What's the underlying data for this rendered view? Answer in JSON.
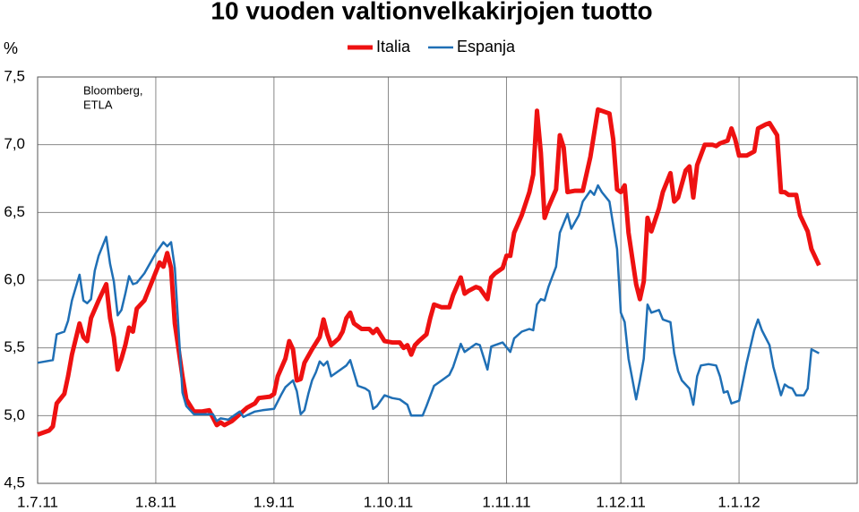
{
  "chart_data": {
    "type": "line",
    "title": "10 vuoden valtionvelkakirjojen tuotto",
    "y_label": "%",
    "source": [
      "Bloomberg,",
      "ETLA"
    ],
    "xlim": [
      0,
      215
    ],
    "xticks": [
      {
        "value": 0,
        "label": "1.7.11"
      },
      {
        "value": 31,
        "label": "1.8.11"
      },
      {
        "value": 62,
        "label": "1.9.11"
      },
      {
        "value": 92,
        "label": "1.10.11"
      },
      {
        "value": 123,
        "label": "1.11.11"
      },
      {
        "value": 153,
        "label": "1.12.11"
      },
      {
        "value": 184,
        "label": "1.1.12"
      }
    ],
    "ylim": [
      4.5,
      7.5
    ],
    "yticks": [
      {
        "value": 4.5,
        "label": "4,5"
      },
      {
        "value": 5,
        "label": "5,0"
      },
      {
        "value": 5.5,
        "label": "5,5"
      },
      {
        "value": 6,
        "label": "6,0"
      },
      {
        "value": 6.5,
        "label": "6,5"
      },
      {
        "value": 7,
        "label": "7,0"
      },
      {
        "value": 7.5,
        "label": "7,5"
      }
    ],
    "grid": true,
    "legend": "top",
    "series": [
      {
        "name": "Italia",
        "color": "#ee1111",
        "width": 5,
        "x": [
          0,
          3,
          4,
          5,
          7,
          8,
          9,
          11,
          12,
          13,
          14,
          16,
          18,
          19,
          20,
          21,
          22,
          23,
          24,
          25,
          26,
          28,
          30,
          32,
          33,
          34,
          35,
          36,
          38,
          39,
          41,
          43,
          45,
          47,
          48,
          49,
          51,
          53,
          55,
          57,
          58,
          61,
          62,
          63,
          65,
          66,
          67,
          68,
          69,
          70,
          72,
          74,
          75,
          76,
          77,
          79,
          80,
          81,
          82,
          83,
          85,
          87,
          88,
          89,
          91,
          93,
          95,
          96,
          97,
          98,
          99,
          100,
          102,
          103,
          104,
          106,
          108,
          109,
          111,
          112,
          113,
          115,
          116,
          118,
          119,
          120,
          122,
          123,
          124,
          125,
          127,
          129,
          130,
          131,
          132,
          133,
          134,
          136,
          137,
          138,
          139,
          141,
          143,
          145,
          147,
          149,
          150,
          151,
          152,
          153,
          154,
          155,
          157,
          158,
          159,
          160,
          161,
          163,
          164,
          166,
          167,
          168,
          170,
          171,
          172,
          173,
          175,
          177,
          178,
          179,
          181,
          182,
          183,
          184,
          186,
          188,
          189,
          191,
          192,
          194,
          195,
          196,
          197,
          199,
          200,
          202,
          203,
          205
        ],
        "values": [
          4.86,
          4.89,
          4.92,
          5.09,
          5.16,
          5.29,
          5.45,
          5.68,
          5.58,
          5.55,
          5.72,
          5.85,
          5.97,
          5.72,
          5.58,
          5.34,
          5.42,
          5.52,
          5.65,
          5.62,
          5.79,
          5.85,
          5.99,
          6.13,
          6.1,
          6.2,
          6.09,
          5.68,
          5.29,
          5.12,
          5.03,
          5.03,
          5.04,
          4.93,
          4.95,
          4.93,
          4.96,
          5.01,
          5.06,
          5.09,
          5.13,
          5.14,
          5.16,
          5.29,
          5.42,
          5.55,
          5.49,
          5.26,
          5.27,
          5.39,
          5.49,
          5.58,
          5.71,
          5.6,
          5.52,
          5.57,
          5.62,
          5.72,
          5.76,
          5.68,
          5.64,
          5.64,
          5.61,
          5.64,
          5.55,
          5.54,
          5.54,
          5.5,
          5.52,
          5.45,
          5.52,
          5.55,
          5.6,
          5.72,
          5.82,
          5.8,
          5.8,
          5.89,
          6.02,
          5.9,
          5.92,
          5.95,
          5.94,
          5.86,
          6.02,
          6.05,
          6.09,
          6.18,
          6.18,
          6.35,
          6.48,
          6.65,
          6.78,
          7.25,
          6.94,
          6.46,
          6.54,
          6.67,
          7.07,
          6.98,
          6.65,
          6.66,
          6.66,
          6.91,
          7.26,
          7.24,
          7.23,
          7.04,
          6.67,
          6.65,
          6.7,
          6.35,
          5.97,
          5.86,
          5.99,
          6.46,
          6.36,
          6.53,
          6.65,
          6.79,
          6.58,
          6.61,
          6.81,
          6.84,
          6.61,
          6.85,
          7.0,
          7.0,
          6.99,
          7.01,
          7.03,
          7.12,
          7.04,
          6.92,
          6.92,
          6.95,
          7.12,
          7.15,
          7.16,
          7.07,
          6.65,
          6.65,
          6.63,
          6.63,
          6.48,
          6.36,
          6.23,
          6.11
        ]
      },
      {
        "name": "Espanja",
        "color": "#1f6fb5",
        "width": 2.5,
        "x": [
          0,
          4,
          5,
          7,
          8,
          9,
          11,
          12,
          13,
          14,
          15,
          16,
          18,
          19,
          20,
          21,
          22,
          23,
          24,
          25,
          26,
          28,
          30,
          31,
          33,
          34,
          35,
          36,
          37,
          38,
          39,
          41,
          44,
          46,
          47,
          48,
          50,
          51,
          53,
          54,
          57,
          59,
          62,
          64,
          65,
          67,
          68,
          69,
          70,
          71,
          72,
          73,
          74,
          75,
          76,
          77,
          79,
          81,
          82,
          84,
          86,
          87,
          88,
          89,
          91,
          93,
          95,
          97,
          98,
          100,
          101,
          102,
          104,
          106,
          108,
          109,
          111,
          112,
          113,
          115,
          116,
          118,
          119,
          120,
          122,
          124,
          125,
          127,
          129,
          130,
          131,
          132,
          133,
          134,
          136,
          137,
          139,
          140,
          142,
          143,
          145,
          146,
          147,
          148,
          150,
          152,
          153,
          154,
          155,
          157,
          158,
          159,
          160,
          161,
          163,
          164,
          166,
          167,
          168,
          169,
          171,
          172,
          173,
          174,
          176,
          178,
          179,
          180,
          181,
          182,
          183,
          184,
          186,
          188,
          189,
          190,
          192,
          193,
          195,
          196,
          197,
          198,
          199,
          201,
          202,
          203,
          205
        ],
        "values": [
          5.39,
          5.41,
          5.6,
          5.62,
          5.7,
          5.85,
          6.04,
          5.85,
          5.83,
          5.86,
          6.07,
          6.18,
          6.32,
          6.12,
          5.99,
          5.74,
          5.78,
          5.9,
          6.03,
          5.97,
          5.98,
          6.05,
          6.15,
          6.2,
          6.28,
          6.25,
          6.28,
          6.09,
          5.62,
          5.17,
          5.07,
          5.01,
          5.01,
          5.01,
          4.96,
          4.98,
          4.97,
          4.99,
          5.03,
          4.99,
          5.03,
          5.04,
          5.05,
          5.16,
          5.21,
          5.26,
          5.18,
          5.01,
          5.04,
          5.16,
          5.26,
          5.32,
          5.4,
          5.37,
          5.4,
          5.29,
          5.33,
          5.37,
          5.41,
          5.22,
          5.2,
          5.18,
          5.05,
          5.07,
          5.15,
          5.13,
          5.12,
          5.08,
          5.0,
          5.0,
          5.0,
          5.07,
          5.22,
          5.26,
          5.3,
          5.36,
          5.53,
          5.47,
          5.49,
          5.53,
          5.52,
          5.34,
          5.51,
          5.52,
          5.54,
          5.47,
          5.57,
          5.62,
          5.64,
          5.63,
          5.82,
          5.86,
          5.85,
          5.95,
          6.1,
          6.35,
          6.49,
          6.38,
          6.48,
          6.58,
          6.66,
          6.63,
          6.7,
          6.65,
          6.58,
          6.23,
          5.76,
          5.69,
          5.42,
          5.12,
          5.26,
          5.42,
          5.82,
          5.76,
          5.78,
          5.71,
          5.69,
          5.46,
          5.33,
          5.26,
          5.2,
          5.08,
          5.29,
          5.37,
          5.38,
          5.37,
          5.29,
          5.17,
          5.18,
          5.09,
          5.1,
          5.11,
          5.39,
          5.63,
          5.71,
          5.63,
          5.52,
          5.36,
          5.15,
          5.23,
          5.21,
          5.2,
          5.15,
          5.15,
          5.2,
          5.49,
          5.46
        ]
      }
    ]
  }
}
